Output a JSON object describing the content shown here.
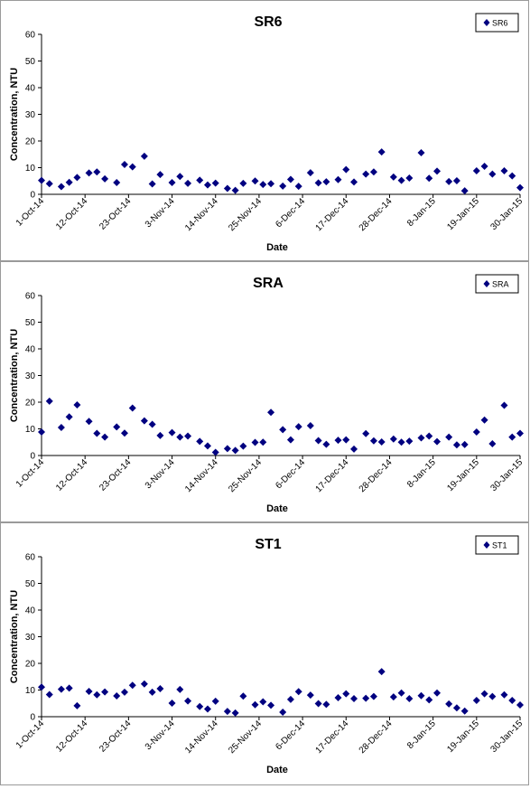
{
  "chart_data": [
    {
      "type": "scatter",
      "title": "SR6",
      "xlabel": "Date",
      "ylabel": "Concentration, NTU",
      "ylim": [
        0,
        60
      ],
      "yticks": [
        0,
        10,
        20,
        30,
        40,
        50,
        60
      ],
      "xlim": [
        "2014-10-01",
        "2015-01-30"
      ],
      "xtick_labels": [
        "1-Oct-14",
        "12-Oct-14",
        "23-Oct-14",
        "3-Nov-14",
        "14-Nov-14",
        "25-Nov-14",
        "6-Dec-14",
        "17-Dec-14",
        "28-Dec-14",
        "8-Jan-15",
        "19-Jan-15",
        "30-Jan-15"
      ],
      "legend": "top-right",
      "color": "#000080",
      "series": [
        {
          "name": "SR6",
          "x": [
            "2014-10-01",
            "2014-10-03",
            "2014-10-06",
            "2014-10-08",
            "2014-10-10",
            "2014-10-13",
            "2014-10-15",
            "2014-10-17",
            "2014-10-20",
            "2014-10-22",
            "2014-10-24",
            "2014-10-27",
            "2014-10-29",
            "2014-10-31",
            "2014-11-03",
            "2014-11-05",
            "2014-11-07",
            "2014-11-10",
            "2014-11-12",
            "2014-11-14",
            "2014-11-17",
            "2014-11-19",
            "2014-11-21",
            "2014-11-24",
            "2014-11-26",
            "2014-11-28",
            "2014-12-01",
            "2014-12-03",
            "2014-12-05",
            "2014-12-08",
            "2014-12-10",
            "2014-12-12",
            "2014-12-15",
            "2014-12-17",
            "2014-12-19",
            "2014-12-22",
            "2014-12-24",
            "2014-12-26",
            "2014-12-29",
            "2014-12-31",
            "2015-01-02",
            "2015-01-05",
            "2015-01-07",
            "2015-01-09",
            "2015-01-12",
            "2015-01-14",
            "2015-01-16",
            "2015-01-19",
            "2015-01-21",
            "2015-01-23",
            "2015-01-26",
            "2015-01-28",
            "2015-01-30"
          ],
          "y": [
            5.2,
            4.0,
            2.9,
            4.5,
            6.3,
            8.0,
            8.4,
            5.8,
            4.4,
            11.2,
            10.3,
            14.3,
            3.9,
            7.4,
            4.4,
            6.7,
            4.1,
            5.3,
            3.5,
            4.2,
            2.2,
            1.5,
            4.1,
            5.0,
            3.7,
            4.0,
            3.1,
            5.6,
            3.0,
            8.1,
            4.3,
            4.7,
            5.5,
            9.3,
            4.6,
            7.6,
            8.4,
            15.9,
            6.5,
            5.2,
            6.1,
            15.6,
            6.0,
            8.7,
            4.8,
            5.1,
            1.3,
            8.8,
            10.5,
            7.6,
            8.8,
            6.9,
            2.5
          ]
        }
      ]
    },
    {
      "type": "scatter",
      "title": "SRA",
      "xlabel": "Date",
      "ylabel": "Concentration, NTU",
      "ylim": [
        0,
        60
      ],
      "yticks": [
        0,
        10,
        20,
        30,
        40,
        50,
        60
      ],
      "xlim": [
        "2014-10-01",
        "2015-01-30"
      ],
      "xtick_labels": [
        "1-Oct-14",
        "12-Oct-14",
        "23-Oct-14",
        "3-Nov-14",
        "14-Nov-14",
        "25-Nov-14",
        "6-Dec-14",
        "17-Dec-14",
        "28-Dec-14",
        "8-Jan-15",
        "19-Jan-15",
        "30-Jan-15"
      ],
      "legend": "top-right",
      "color": "#000080",
      "series": [
        {
          "name": "SRA",
          "x": [
            "2014-10-01",
            "2014-10-03",
            "2014-10-06",
            "2014-10-08",
            "2014-10-10",
            "2014-10-13",
            "2014-10-15",
            "2014-10-17",
            "2014-10-20",
            "2014-10-22",
            "2014-10-24",
            "2014-10-27",
            "2014-10-29",
            "2014-10-31",
            "2014-11-03",
            "2014-11-05",
            "2014-11-07",
            "2014-11-10",
            "2014-11-12",
            "2014-11-14",
            "2014-11-17",
            "2014-11-19",
            "2014-11-21",
            "2014-11-24",
            "2014-11-26",
            "2014-11-28",
            "2014-12-01",
            "2014-12-03",
            "2014-12-05",
            "2014-12-08",
            "2014-12-10",
            "2014-12-12",
            "2014-12-15",
            "2014-12-17",
            "2014-12-19",
            "2014-12-22",
            "2014-12-24",
            "2014-12-26",
            "2014-12-29",
            "2014-12-31",
            "2015-01-02",
            "2015-01-05",
            "2015-01-07",
            "2015-01-09",
            "2015-01-12",
            "2015-01-14",
            "2015-01-16",
            "2015-01-19",
            "2015-01-21",
            "2015-01-23",
            "2015-01-26",
            "2015-01-28",
            "2015-01-30"
          ],
          "y": [
            8.8,
            20.4,
            10.5,
            14.5,
            19.0,
            12.8,
            8.3,
            6.9,
            10.7,
            8.4,
            17.8,
            13.0,
            11.7,
            7.5,
            8.6,
            6.9,
            7.3,
            5.3,
            3.6,
            1.2,
            2.6,
            1.9,
            3.5,
            4.9,
            5.0,
            16.2,
            9.7,
            5.9,
            10.8,
            11.2,
            5.6,
            4.2,
            5.7,
            5.9,
            2.4,
            8.2,
            5.5,
            5.1,
            6.2,
            5.0,
            5.4,
            6.6,
            7.3,
            5.2,
            6.9,
            4.0,
            4.1,
            8.8,
            13.3,
            4.4,
            18.8,
            6.9,
            8.3
          ]
        }
      ]
    },
    {
      "type": "scatter",
      "title": "ST1",
      "xlabel": "Date",
      "ylabel": "Concentration, NTU",
      "ylim": [
        0,
        60
      ],
      "yticks": [
        0,
        10,
        20,
        30,
        40,
        50,
        60
      ],
      "xlim": [
        "2014-10-01",
        "2015-01-30"
      ],
      "xtick_labels": [
        "1-Oct-14",
        "12-Oct-14",
        "23-Oct-14",
        "3-Nov-14",
        "14-Nov-14",
        "25-Nov-14",
        "6-Dec-14",
        "17-Dec-14",
        "28-Dec-14",
        "8-Jan-15",
        "19-Jan-15",
        "30-Jan-15"
      ],
      "legend": "top-right",
      "color": "#000080",
      "series": [
        {
          "name": "ST1",
          "x": [
            "2014-10-01",
            "2014-10-03",
            "2014-10-06",
            "2014-10-08",
            "2014-10-10",
            "2014-10-13",
            "2014-10-15",
            "2014-10-17",
            "2014-10-20",
            "2014-10-22",
            "2014-10-24",
            "2014-10-27",
            "2014-10-29",
            "2014-10-31",
            "2014-11-03",
            "2014-11-05",
            "2014-11-07",
            "2014-11-10",
            "2014-11-12",
            "2014-11-14",
            "2014-11-17",
            "2014-11-19",
            "2014-11-21",
            "2014-11-24",
            "2014-11-26",
            "2014-11-28",
            "2014-12-01",
            "2014-12-03",
            "2014-12-05",
            "2014-12-08",
            "2014-12-10",
            "2014-12-12",
            "2014-12-15",
            "2014-12-17",
            "2014-12-19",
            "2014-12-22",
            "2014-12-24",
            "2014-12-26",
            "2014-12-29",
            "2014-12-31",
            "2015-01-02",
            "2015-01-05",
            "2015-01-07",
            "2015-01-09",
            "2015-01-12",
            "2015-01-14",
            "2015-01-16",
            "2015-01-19",
            "2015-01-21",
            "2015-01-23",
            "2015-01-26",
            "2015-01-28",
            "2015-01-30"
          ],
          "y": [
            11.1,
            8.3,
            10.3,
            10.7,
            4.1,
            9.5,
            8.2,
            9.3,
            7.8,
            9.2,
            11.8,
            12.3,
            9.2,
            10.5,
            5.1,
            10.2,
            5.9,
            3.8,
            2.9,
            5.8,
            2.0,
            1.4,
            7.7,
            4.5,
            5.6,
            4.3,
            1.7,
            6.5,
            9.4,
            8.1,
            4.9,
            4.6,
            7.1,
            8.6,
            6.8,
            6.9,
            7.6,
            16.9,
            7.4,
            8.9,
            6.8,
            7.9,
            6.3,
            8.9,
            4.8,
            3.3,
            2.1,
            6.1,
            8.6,
            7.6,
            8.2,
            6.1,
            4.4
          ]
        }
      ]
    }
  ]
}
